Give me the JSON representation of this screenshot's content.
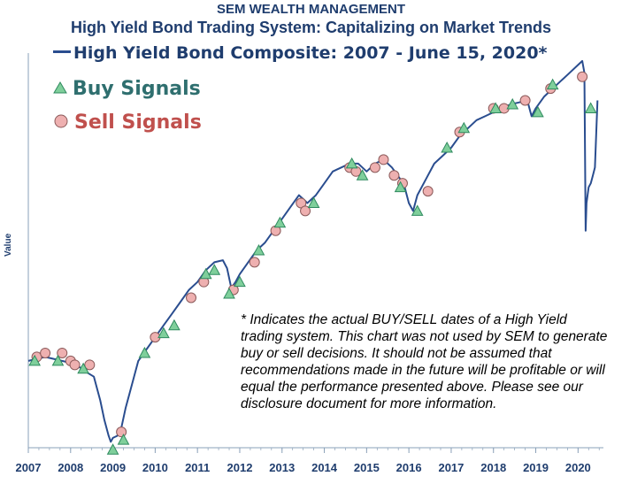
{
  "company": "SEM WEALTH MANAGEMENT",
  "title": "High Yield Bond Trading System: Capitalizing on Market Trends",
  "series_label": "High Yield Bond Composite: 2007 - June 15, 2020*",
  "legend": {
    "buy": "Buy Signals",
    "sell": "Sell Signals"
  },
  "ylabel": "Value",
  "footnote": "* Indicates the actual BUY/SELL dates of a High Yield trading system.  This chart was not used by SEM to generate buy or sell decisions.  It should not be assumed that recommendations made in the future will be profitable or will equal the performance presented above.  Please see our disclosure document for more information.",
  "colors": {
    "line": "#2a4d8f",
    "buy_fill": "#7fcf9b",
    "buy_stroke": "#2f8a5f",
    "sell_fill": "#eeb0b0",
    "sell_stroke": "#8b5a5a",
    "axis": "#8aa0b8"
  },
  "chart_data": {
    "type": "line",
    "xlabel": "",
    "ylabel": "Value",
    "xlim": [
      2007,
      2020.6
    ],
    "ylim": [
      0,
      100
    ],
    "grid": false,
    "ticks": [
      "2007",
      "2008",
      "2009",
      "2010",
      "2011",
      "2012",
      "2013",
      "2014",
      "2015",
      "2016",
      "2017",
      "2018",
      "2019",
      "2020"
    ],
    "series": [
      {
        "name": "High Yield Bond Composite: 2007 - June 15, 2020*",
        "x": [
          2007.0,
          2007.2,
          2007.4,
          2007.6,
          2007.8,
          2008.0,
          2008.2,
          2008.4,
          2008.55,
          2008.7,
          2008.8,
          2008.9,
          2008.95,
          2009.0,
          2009.1,
          2009.2,
          2009.3,
          2009.4,
          2009.5,
          2009.6,
          2009.8,
          2010.0,
          2010.2,
          2010.4,
          2010.6,
          2010.8,
          2011.0,
          2011.2,
          2011.4,
          2011.6,
          2011.7,
          2011.8,
          2011.9,
          2012.0,
          2012.2,
          2012.4,
          2012.6,
          2012.8,
          2013.0,
          2013.2,
          2013.4,
          2013.5,
          2013.6,
          2013.8,
          2014.0,
          2014.2,
          2014.4,
          2014.6,
          2014.8,
          2014.9,
          2015.0,
          2015.2,
          2015.4,
          2015.6,
          2015.8,
          2015.9,
          2016.0,
          2016.1,
          2016.2,
          2016.4,
          2016.6,
          2016.8,
          2017.0,
          2017.2,
          2017.4,
          2017.6,
          2017.8,
          2018.0,
          2018.2,
          2018.4,
          2018.6,
          2018.8,
          2018.9,
          2019.0,
          2019.2,
          2019.4,
          2019.6,
          2019.8,
          2020.0,
          2020.1,
          2020.15,
          2020.18,
          2020.2,
          2020.25,
          2020.3,
          2020.35,
          2020.4,
          2020.46
        ],
        "values": [
          22,
          22.5,
          23,
          22.5,
          22,
          21.5,
          20.5,
          19,
          18,
          12,
          7,
          3,
          1.5,
          2.5,
          3,
          5,
          10,
          14,
          18,
          22,
          25,
          28,
          31,
          34,
          37,
          40,
          42,
          45,
          47,
          47.5,
          45.5,
          40.5,
          42,
          44,
          47,
          50,
          52,
          55,
          58,
          61,
          64,
          63,
          62,
          64,
          67,
          70,
          71,
          72,
          72,
          71,
          70,
          72,
          73,
          71,
          68,
          66,
          62,
          60,
          64,
          68,
          72,
          74,
          76,
          79,
          81,
          83,
          84,
          85,
          86,
          87,
          87.5,
          88,
          84,
          86,
          89,
          91,
          93,
          95,
          97,
          98,
          95,
          55,
          62,
          66,
          67,
          69,
          71,
          88
        ]
      }
    ],
    "buy_signals": [
      {
        "x": 2007.15,
        "y": 22
      },
      {
        "x": 2007.7,
        "y": 22
      },
      {
        "x": 2008.3,
        "y": 20
      },
      {
        "x": 2009.0,
        "y": -0.5
      },
      {
        "x": 2009.25,
        "y": 2
      },
      {
        "x": 2009.75,
        "y": 24
      },
      {
        "x": 2010.2,
        "y": 29
      },
      {
        "x": 2010.45,
        "y": 31
      },
      {
        "x": 2011.2,
        "y": 44
      },
      {
        "x": 2011.4,
        "y": 45
      },
      {
        "x": 2011.75,
        "y": 39
      },
      {
        "x": 2012.0,
        "y": 42
      },
      {
        "x": 2012.45,
        "y": 50
      },
      {
        "x": 2012.95,
        "y": 57
      },
      {
        "x": 2013.75,
        "y": 62
      },
      {
        "x": 2014.65,
        "y": 72
      },
      {
        "x": 2014.9,
        "y": 69
      },
      {
        "x": 2015.8,
        "y": 66
      },
      {
        "x": 2016.2,
        "y": 60
      },
      {
        "x": 2016.9,
        "y": 76
      },
      {
        "x": 2017.3,
        "y": 81
      },
      {
        "x": 2018.05,
        "y": 86
      },
      {
        "x": 2018.45,
        "y": 87
      },
      {
        "x": 2019.05,
        "y": 85
      },
      {
        "x": 2019.4,
        "y": 92
      },
      {
        "x": 2020.3,
        "y": 86
      }
    ],
    "sell_signals": [
      {
        "x": 2007.2,
        "y": 23
      },
      {
        "x": 2007.4,
        "y": 24
      },
      {
        "x": 2007.8,
        "y": 24
      },
      {
        "x": 2008.0,
        "y": 22
      },
      {
        "x": 2008.1,
        "y": 21
      },
      {
        "x": 2008.45,
        "y": 21
      },
      {
        "x": 2009.2,
        "y": 4
      },
      {
        "x": 2010.0,
        "y": 28
      },
      {
        "x": 2010.85,
        "y": 38
      },
      {
        "x": 2011.15,
        "y": 42
      },
      {
        "x": 2011.85,
        "y": 40
      },
      {
        "x": 2012.35,
        "y": 47
      },
      {
        "x": 2012.85,
        "y": 55
      },
      {
        "x": 2013.45,
        "y": 62
      },
      {
        "x": 2013.55,
        "y": 60
      },
      {
        "x": 2014.6,
        "y": 71
      },
      {
        "x": 2014.75,
        "y": 70
      },
      {
        "x": 2015.2,
        "y": 71
      },
      {
        "x": 2015.4,
        "y": 73
      },
      {
        "x": 2015.65,
        "y": 69
      },
      {
        "x": 2015.85,
        "y": 67
      },
      {
        "x": 2016.45,
        "y": 65
      },
      {
        "x": 2017.2,
        "y": 80
      },
      {
        "x": 2018.0,
        "y": 86
      },
      {
        "x": 2018.25,
        "y": 86
      },
      {
        "x": 2018.75,
        "y": 88
      },
      {
        "x": 2019.35,
        "y": 91
      },
      {
        "x": 2020.1,
        "y": 94
      }
    ]
  }
}
